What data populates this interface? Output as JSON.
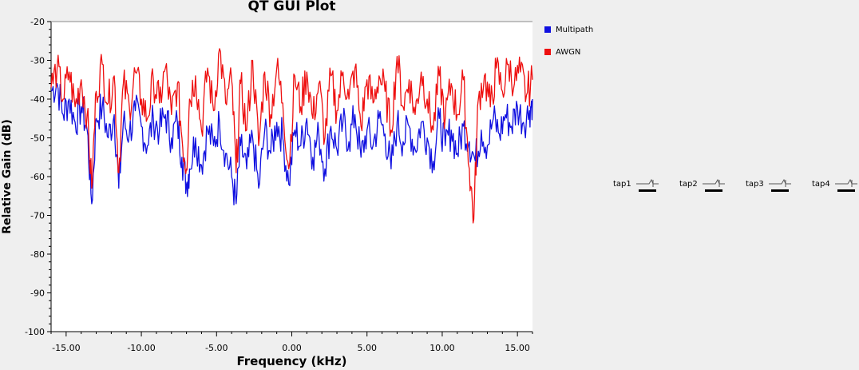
{
  "window": {
    "title": "QT GUI Plot"
  },
  "chart_data": {
    "type": "line",
    "title": "QT GUI Plot",
    "xlabel": "Frequency (kHz)",
    "ylabel": "Relative Gain (dB)",
    "xlim": [
      -16.0,
      16.0
    ],
    "ylim": [
      -100,
      -20
    ],
    "xticks": [
      -15.0,
      -10.0,
      -5.0,
      0.0,
      5.0,
      10.0,
      15.0
    ],
    "xtick_labels": [
      "-15.00",
      "-10.00",
      "-5.00",
      "0.00",
      "5.00",
      "10.00",
      "15.00"
    ],
    "yticks": [
      -20,
      -30,
      -40,
      -50,
      -60,
      -70,
      -80,
      -90,
      -100
    ],
    "ytick_labels": [
      "-20",
      "-30",
      "-40",
      "-50",
      "-60",
      "-70",
      "-80",
      "-90",
      "-100"
    ],
    "grid": false,
    "legend_position": "right",
    "colors": {
      "Multipath": "#1010e0",
      "AWGN": "#ee1010"
    },
    "series": [
      {
        "name": "Multipath",
        "color": "#1010e0",
        "points": [
          [
            -16.0,
            -38
          ],
          [
            -15.6,
            -36
          ],
          [
            -15.2,
            -44
          ],
          [
            -14.8,
            -40
          ],
          [
            -14.4,
            -46
          ],
          [
            -14.0,
            -42
          ],
          [
            -13.6,
            -48
          ],
          [
            -13.3,
            -67
          ],
          [
            -13.0,
            -45
          ],
          [
            -12.6,
            -42
          ],
          [
            -12.2,
            -50
          ],
          [
            -11.8,
            -44
          ],
          [
            -11.5,
            -63
          ],
          [
            -11.2,
            -46
          ],
          [
            -10.8,
            -49
          ],
          [
            -10.4,
            -43
          ],
          [
            -10.0,
            -47
          ],
          [
            -9.6,
            -52
          ],
          [
            -9.2,
            -45
          ],
          [
            -8.8,
            -48
          ],
          [
            -8.4,
            -44
          ],
          [
            -8.0,
            -50
          ],
          [
            -7.6,
            -46
          ],
          [
            -7.3,
            -55
          ],
          [
            -7.0,
            -62
          ],
          [
            -6.8,
            -58
          ],
          [
            -6.4,
            -50
          ],
          [
            -6.0,
            -57
          ],
          [
            -5.6,
            -48
          ],
          [
            -5.2,
            -52
          ],
          [
            -4.8,
            -46
          ],
          [
            -4.4,
            -54
          ],
          [
            -4.0,
            -60
          ],
          [
            -3.7,
            -67
          ],
          [
            -3.4,
            -52
          ],
          [
            -3.0,
            -58
          ],
          [
            -2.6,
            -50
          ],
          [
            -2.2,
            -63
          ],
          [
            -1.8,
            -48
          ],
          [
            -1.4,
            -54
          ],
          [
            -1.0,
            -46
          ],
          [
            -0.6,
            -50
          ],
          [
            -0.2,
            -62
          ],
          [
            0.2,
            -48
          ],
          [
            0.6,
            -52
          ],
          [
            1.0,
            -45
          ],
          [
            1.4,
            -55
          ],
          [
            1.8,
            -49
          ],
          [
            2.2,
            -58
          ],
          [
            2.6,
            -47
          ],
          [
            3.0,
            -53
          ],
          [
            3.4,
            -46
          ],
          [
            3.8,
            -51
          ],
          [
            4.2,
            -44
          ],
          [
            4.6,
            -55
          ],
          [
            5.0,
            -48
          ],
          [
            5.4,
            -52
          ],
          [
            5.8,
            -45
          ],
          [
            6.2,
            -49
          ],
          [
            6.6,
            -58
          ],
          [
            7.0,
            -46
          ],
          [
            7.4,
            -51
          ],
          [
            7.8,
            -47
          ],
          [
            8.2,
            -53
          ],
          [
            8.6,
            -46
          ],
          [
            9.0,
            -50
          ],
          [
            9.4,
            -56
          ],
          [
            9.8,
            -45
          ],
          [
            10.2,
            -52
          ],
          [
            10.6,
            -48
          ],
          [
            11.0,
            -54
          ],
          [
            11.4,
            -47
          ],
          [
            11.8,
            -51
          ],
          [
            12.2,
            -56
          ],
          [
            12.6,
            -48
          ],
          [
            13.0,
            -52
          ],
          [
            13.4,
            -45
          ],
          [
            13.8,
            -49
          ],
          [
            14.2,
            -44
          ],
          [
            14.6,
            -47
          ],
          [
            15.0,
            -42
          ],
          [
            15.4,
            -46
          ],
          [
            15.8,
            -43
          ],
          [
            16.0,
            -40
          ]
        ]
      },
      {
        "name": "AWGN",
        "color": "#ee1010",
        "points": [
          [
            -16.0,
            -37
          ],
          [
            -15.6,
            -32
          ],
          [
            -15.2,
            -40
          ],
          [
            -14.8,
            -33
          ],
          [
            -14.4,
            -42
          ],
          [
            -14.0,
            -35
          ],
          [
            -13.6,
            -44
          ],
          [
            -13.3,
            -63
          ],
          [
            -13.0,
            -38
          ],
          [
            -12.6,
            -31
          ],
          [
            -12.2,
            -41
          ],
          [
            -11.8,
            -34
          ],
          [
            -11.5,
            -59
          ],
          [
            -11.2,
            -36
          ],
          [
            -10.8,
            -42
          ],
          [
            -10.4,
            -33
          ],
          [
            -10.0,
            -40
          ],
          [
            -9.6,
            -45
          ],
          [
            -9.2,
            -35
          ],
          [
            -8.8,
            -41
          ],
          [
            -8.4,
            -32
          ],
          [
            -8.0,
            -44
          ],
          [
            -7.6,
            -36
          ],
          [
            -7.3,
            -50
          ],
          [
            -7.0,
            -58
          ],
          [
            -6.8,
            -40
          ],
          [
            -6.4,
            -34
          ],
          [
            -6.0,
            -48
          ],
          [
            -5.6,
            -32
          ],
          [
            -5.2,
            -43
          ],
          [
            -4.8,
            -27
          ],
          [
            -4.4,
            -41
          ],
          [
            -4.0,
            -35
          ],
          [
            -3.7,
            -59
          ],
          [
            -3.4,
            -36
          ],
          [
            -3.0,
            -48
          ],
          [
            -2.6,
            -30
          ],
          [
            -2.2,
            -52
          ],
          [
            -1.8,
            -33
          ],
          [
            -1.4,
            -44
          ],
          [
            -1.0,
            -32
          ],
          [
            -0.6,
            -41
          ],
          [
            -0.2,
            -58
          ],
          [
            0.2,
            -34
          ],
          [
            0.6,
            -42
          ],
          [
            1.0,
            -33
          ],
          [
            1.4,
            -45
          ],
          [
            1.8,
            -36
          ],
          [
            2.2,
            -50
          ],
          [
            2.6,
            -34
          ],
          [
            3.0,
            -43
          ],
          [
            3.4,
            -33
          ],
          [
            3.8,
            -40
          ],
          [
            4.2,
            -32
          ],
          [
            4.6,
            -47
          ],
          [
            5.0,
            -35
          ],
          [
            5.4,
            -41
          ],
          [
            5.8,
            -34
          ],
          [
            6.2,
            -38
          ],
          [
            6.6,
            -48
          ],
          [
            7.0,
            -29
          ],
          [
            7.4,
            -42
          ],
          [
            7.8,
            -35
          ],
          [
            8.2,
            -44
          ],
          [
            8.6,
            -33
          ],
          [
            9.0,
            -40
          ],
          [
            9.4,
            -48
          ],
          [
            9.8,
            -34
          ],
          [
            10.2,
            -45
          ],
          [
            10.6,
            -36
          ],
          [
            11.0,
            -44
          ],
          [
            11.4,
            -35
          ],
          [
            11.8,
            -58
          ],
          [
            12.1,
            -71
          ],
          [
            12.4,
            -40
          ],
          [
            12.8,
            -34
          ],
          [
            13.2,
            -42
          ],
          [
            13.6,
            -32
          ],
          [
            14.0,
            -38
          ],
          [
            14.4,
            -31
          ],
          [
            14.8,
            -36
          ],
          [
            15.2,
            -33
          ],
          [
            15.6,
            -39
          ],
          [
            16.0,
            -35
          ]
        ]
      }
    ]
  },
  "legend": {
    "items": [
      {
        "label": "Multipath",
        "color": "#1010e0"
      },
      {
        "label": "AWGN",
        "color": "#ee1010"
      }
    ]
  },
  "controls": {
    "taps": [
      {
        "label": "tap1"
      },
      {
        "label": "tap2"
      },
      {
        "label": "tap3"
      },
      {
        "label": "tap4"
      }
    ]
  }
}
